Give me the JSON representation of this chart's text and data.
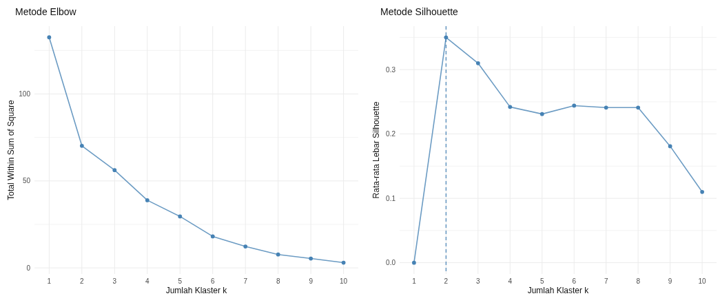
{
  "chart_data": [
    {
      "type": "line",
      "title": "Metode Elbow",
      "xlabel": "Jumlah Klaster k",
      "ylabel": "Total Within Sum of Square",
      "x": [
        1,
        2,
        3,
        4,
        5,
        6,
        7,
        8,
        9,
        10
      ],
      "series": [
        {
          "color": "#4682b4",
          "values": [
            132.6,
            70.2,
            56.2,
            38.9,
            29.6,
            18.1,
            12.3,
            7.7,
            5.4,
            3.0
          ]
        }
      ],
      "xlim": [
        0.55,
        10.45
      ],
      "xticks": [
        1,
        2,
        3,
        4,
        5,
        6,
        7,
        8,
        9,
        10
      ],
      "ylim": [
        -3.5,
        139
      ],
      "yticks": [
        0,
        {
          "value": 25,
          "label": null
        },
        50,
        {
          "value": 75,
          "label": null
        },
        100,
        {
          "value": 125,
          "label": null
        }
      ],
      "grid": true,
      "marker": "circle",
      "line_style": "solid"
    },
    {
      "type": "line",
      "title": "Metode Silhouette",
      "xlabel": "Jumlah Klaster k",
      "ylabel": "Rata-rata Lebar Silhouette",
      "x": [
        1,
        2,
        3,
        4,
        5,
        6,
        7,
        8,
        9,
        10
      ],
      "series": [
        {
          "color": "#4682b4",
          "values": [
            0.0,
            0.35,
            0.31,
            0.242,
            0.231,
            0.244,
            0.241,
            0.241,
            0.181,
            0.11
          ]
        }
      ],
      "xlim": [
        0.55,
        10.45
      ],
      "xticks": [
        1,
        2,
        3,
        4,
        5,
        6,
        7,
        8,
        9,
        10
      ],
      "ylim": [
        -0.0175,
        0.3675
      ],
      "yticks": [
        {
          "value": 0,
          "label": "0.0"
        },
        {
          "value": 0.05,
          "label": null
        },
        {
          "value": 0.1,
          "label": "0.1"
        },
        {
          "value": 0.15,
          "label": null
        },
        {
          "value": 0.2,
          "label": "0.2"
        },
        {
          "value": 0.25,
          "label": null
        },
        {
          "value": 0.3,
          "label": "0.3"
        },
        {
          "value": 0.35,
          "label": null
        }
      ],
      "grid": true,
      "marker": "circle",
      "line_style": "solid",
      "ref_lines": [
        {
          "axis": "x",
          "value": 2,
          "color": "#4682b4",
          "line_style": "dashed"
        }
      ]
    }
  ]
}
